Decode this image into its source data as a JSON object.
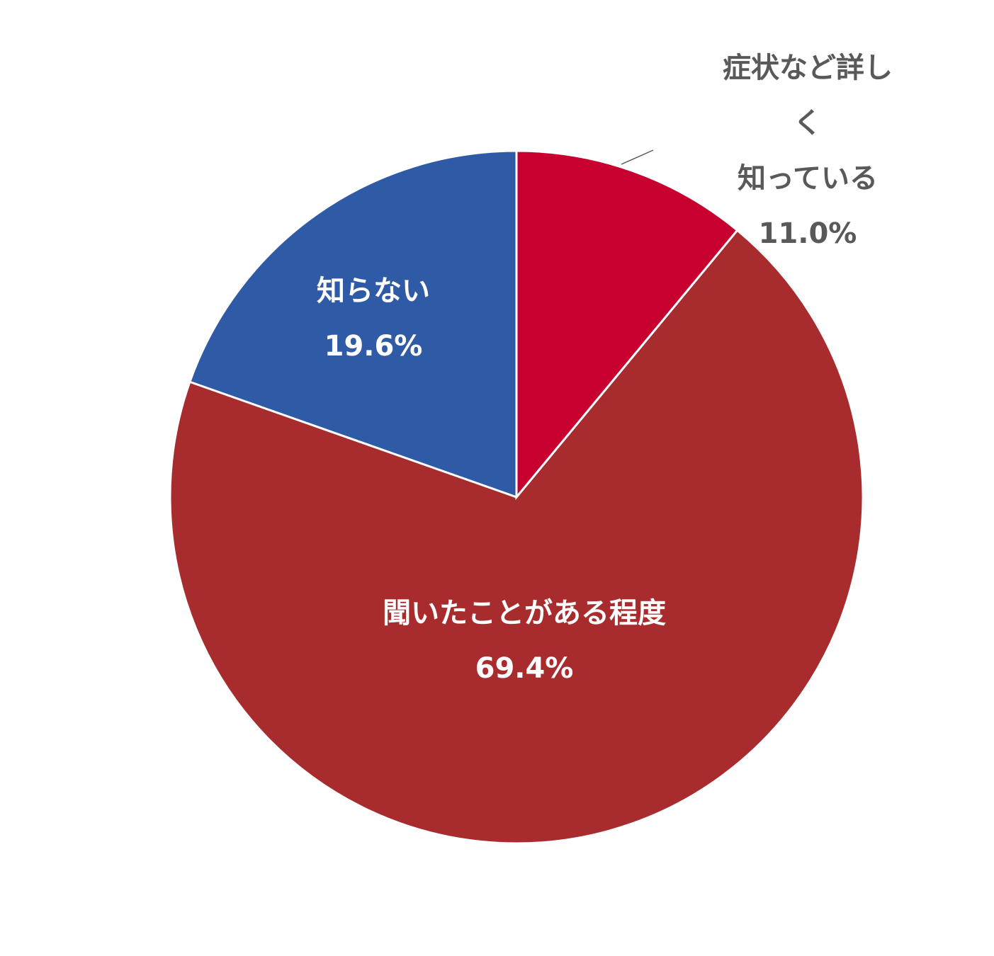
{
  "chart_data": {
    "type": "pie",
    "categories": [
      "症状など詳しく\n知っている",
      "聞いたことがある程度",
      "知らない"
    ],
    "values": [
      11.0,
      69.4,
      19.6
    ],
    "value_labels": [
      "11.0%",
      "69.4%",
      "19.6%"
    ],
    "colors": [
      "#c8002f",
      "#a82c2e",
      "#2f5aa5"
    ]
  }
}
